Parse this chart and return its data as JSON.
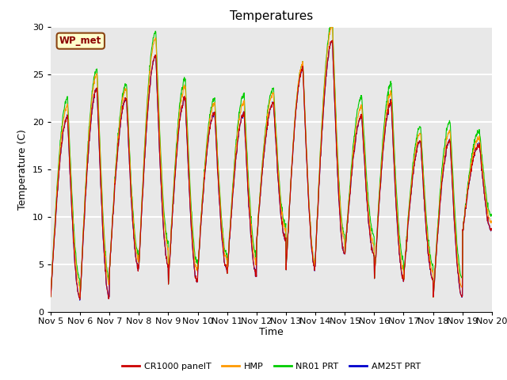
{
  "title": "Temperatures",
  "xlabel": "Time",
  "ylabel": "Temperature (C)",
  "ylim": [
    0,
    30
  ],
  "annotation_text": "WP_met",
  "bg_color": "#e8e8e8",
  "grid_color": "white",
  "legend_labels": [
    "CR1000 panelT",
    "HMP",
    "NR01 PRT",
    "AM25T PRT"
  ],
  "line_colors": [
    "#cc0000",
    "#ff9900",
    "#00cc00",
    "#0000cc"
  ],
  "x_tick_labels": [
    "Nov 5",
    "Nov 6",
    "Nov 7",
    "Nov 8",
    "Nov 9",
    "Nov 10",
    "Nov 11",
    "Nov 12",
    "Nov 13",
    "Nov 14",
    "Nov 15",
    "Nov 16",
    "Nov 17",
    "Nov 18",
    "Nov 19",
    "Nov 20"
  ],
  "n_days": 15,
  "pts_per_day": 96,
  "daily_mins": [
    1.5,
    1.5,
    4.5,
    5.0,
    3.0,
    4.5,
    4.0,
    7.5,
    4.5,
    6.0,
    6.0,
    3.5,
    3.5,
    1.5,
    8.5
  ],
  "daily_maxs": [
    20.5,
    23.5,
    22.5,
    27.0,
    22.5,
    21.0,
    20.8,
    22.0,
    25.5,
    28.5,
    20.5,
    22.0,
    18.0,
    18.0,
    17.5
  ],
  "nr01_extra": [
    2.0,
    2.0,
    1.5,
    2.5,
    2.0,
    1.5,
    2.0,
    1.5,
    0.5,
    2.0,
    2.0,
    2.0,
    1.5,
    2.0,
    1.5
  ],
  "hmp_extra": [
    1.2,
    1.5,
    1.0,
    1.8,
    1.2,
    1.0,
    1.2,
    1.0,
    0.5,
    1.5,
    1.0,
    1.0,
    0.8,
    1.0,
    0.8
  ]
}
